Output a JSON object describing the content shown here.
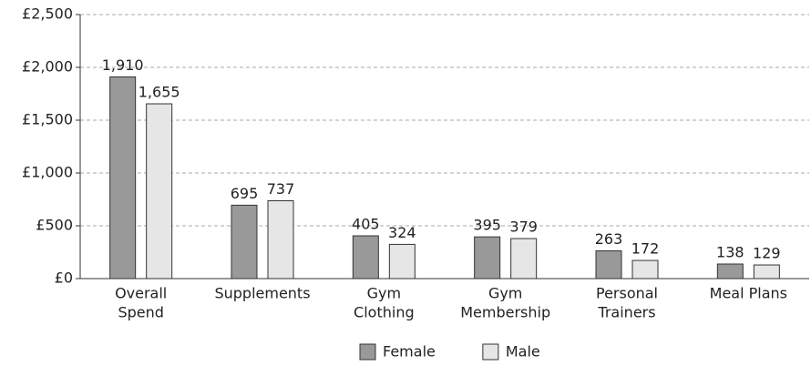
{
  "chart_data": {
    "type": "bar",
    "categories": [
      [
        "Overall",
        "Spend"
      ],
      [
        "Supplements"
      ],
      [
        "Gym",
        "Clothing"
      ],
      [
        "Gym",
        "Membership"
      ],
      [
        "Personal",
        "Trainers"
      ],
      [
        "Meal Plans"
      ]
    ],
    "series": [
      {
        "name": "Female",
        "color": "#999999",
        "values": [
          1910,
          695,
          405,
          395,
          263,
          138
        ],
        "value_labels": [
          "1,910",
          "695",
          "405",
          "395",
          "263",
          "138"
        ]
      },
      {
        "name": "Male",
        "color": "#e6e6e6",
        "values": [
          1655,
          737,
          324,
          379,
          172,
          129
        ],
        "value_labels": [
          "1,655",
          "737",
          "324",
          "379",
          "172",
          "129"
        ]
      }
    ],
    "ylim": [
      0,
      2500
    ],
    "yticks": [
      {
        "value": 0,
        "label": "£0"
      },
      {
        "value": 500,
        "label": "£500"
      },
      {
        "value": 1000,
        "label": "£1,000"
      },
      {
        "value": 1500,
        "label": "£1,500"
      },
      {
        "value": 2000,
        "label": "£2,000"
      },
      {
        "value": 2500,
        "label": "£2,500"
      }
    ],
    "grid": true,
    "legend": "bottom"
  }
}
